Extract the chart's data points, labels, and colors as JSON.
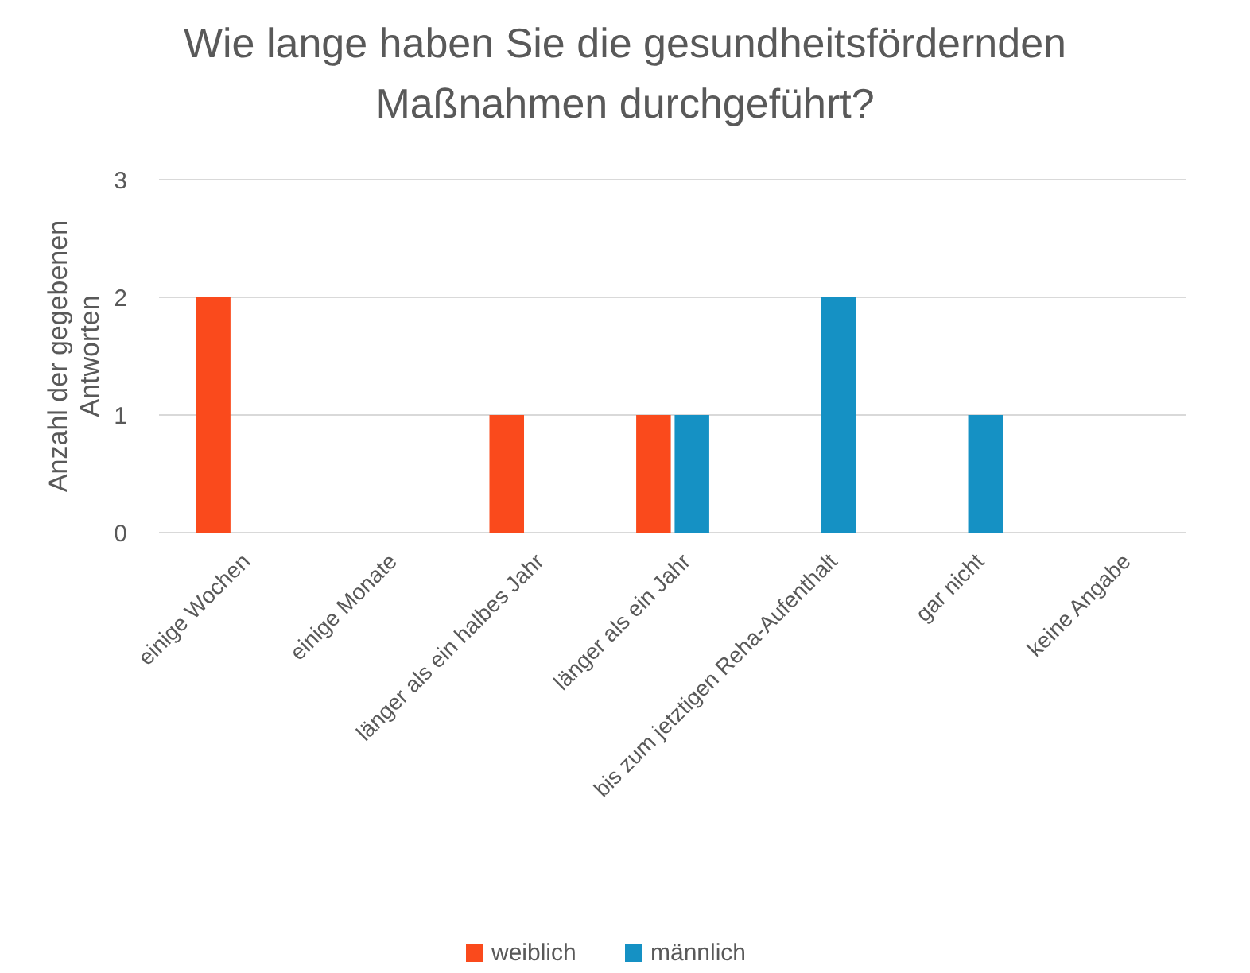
{
  "chart_data": {
    "type": "bar",
    "title": "Wie lange haben Sie die gesundheitsfördernden Maßnahmen durchgeführt?",
    "ylabel": "Anzahl der gegebenen Antworten",
    "categories": [
      "einige Wochen",
      "einige Monate",
      "länger als ein halbes Jahr",
      "länger als ein Jahr",
      "bis zum jetztigen Reha-Aufenthalt",
      "gar nicht",
      "keine Angabe"
    ],
    "series": [
      {
        "name": "weiblich",
        "color": "#fa4a1c",
        "values": [
          2,
          0,
          1,
          1,
          0,
          0,
          0
        ]
      },
      {
        "name": "männlich",
        "color": "#1591c4",
        "values": [
          0,
          0,
          0,
          1,
          2,
          1,
          0
        ]
      }
    ],
    "ylim": [
      0,
      3
    ],
    "yticks": [
      0,
      1,
      2,
      3
    ],
    "grid": "y",
    "legend": "bottom"
  }
}
